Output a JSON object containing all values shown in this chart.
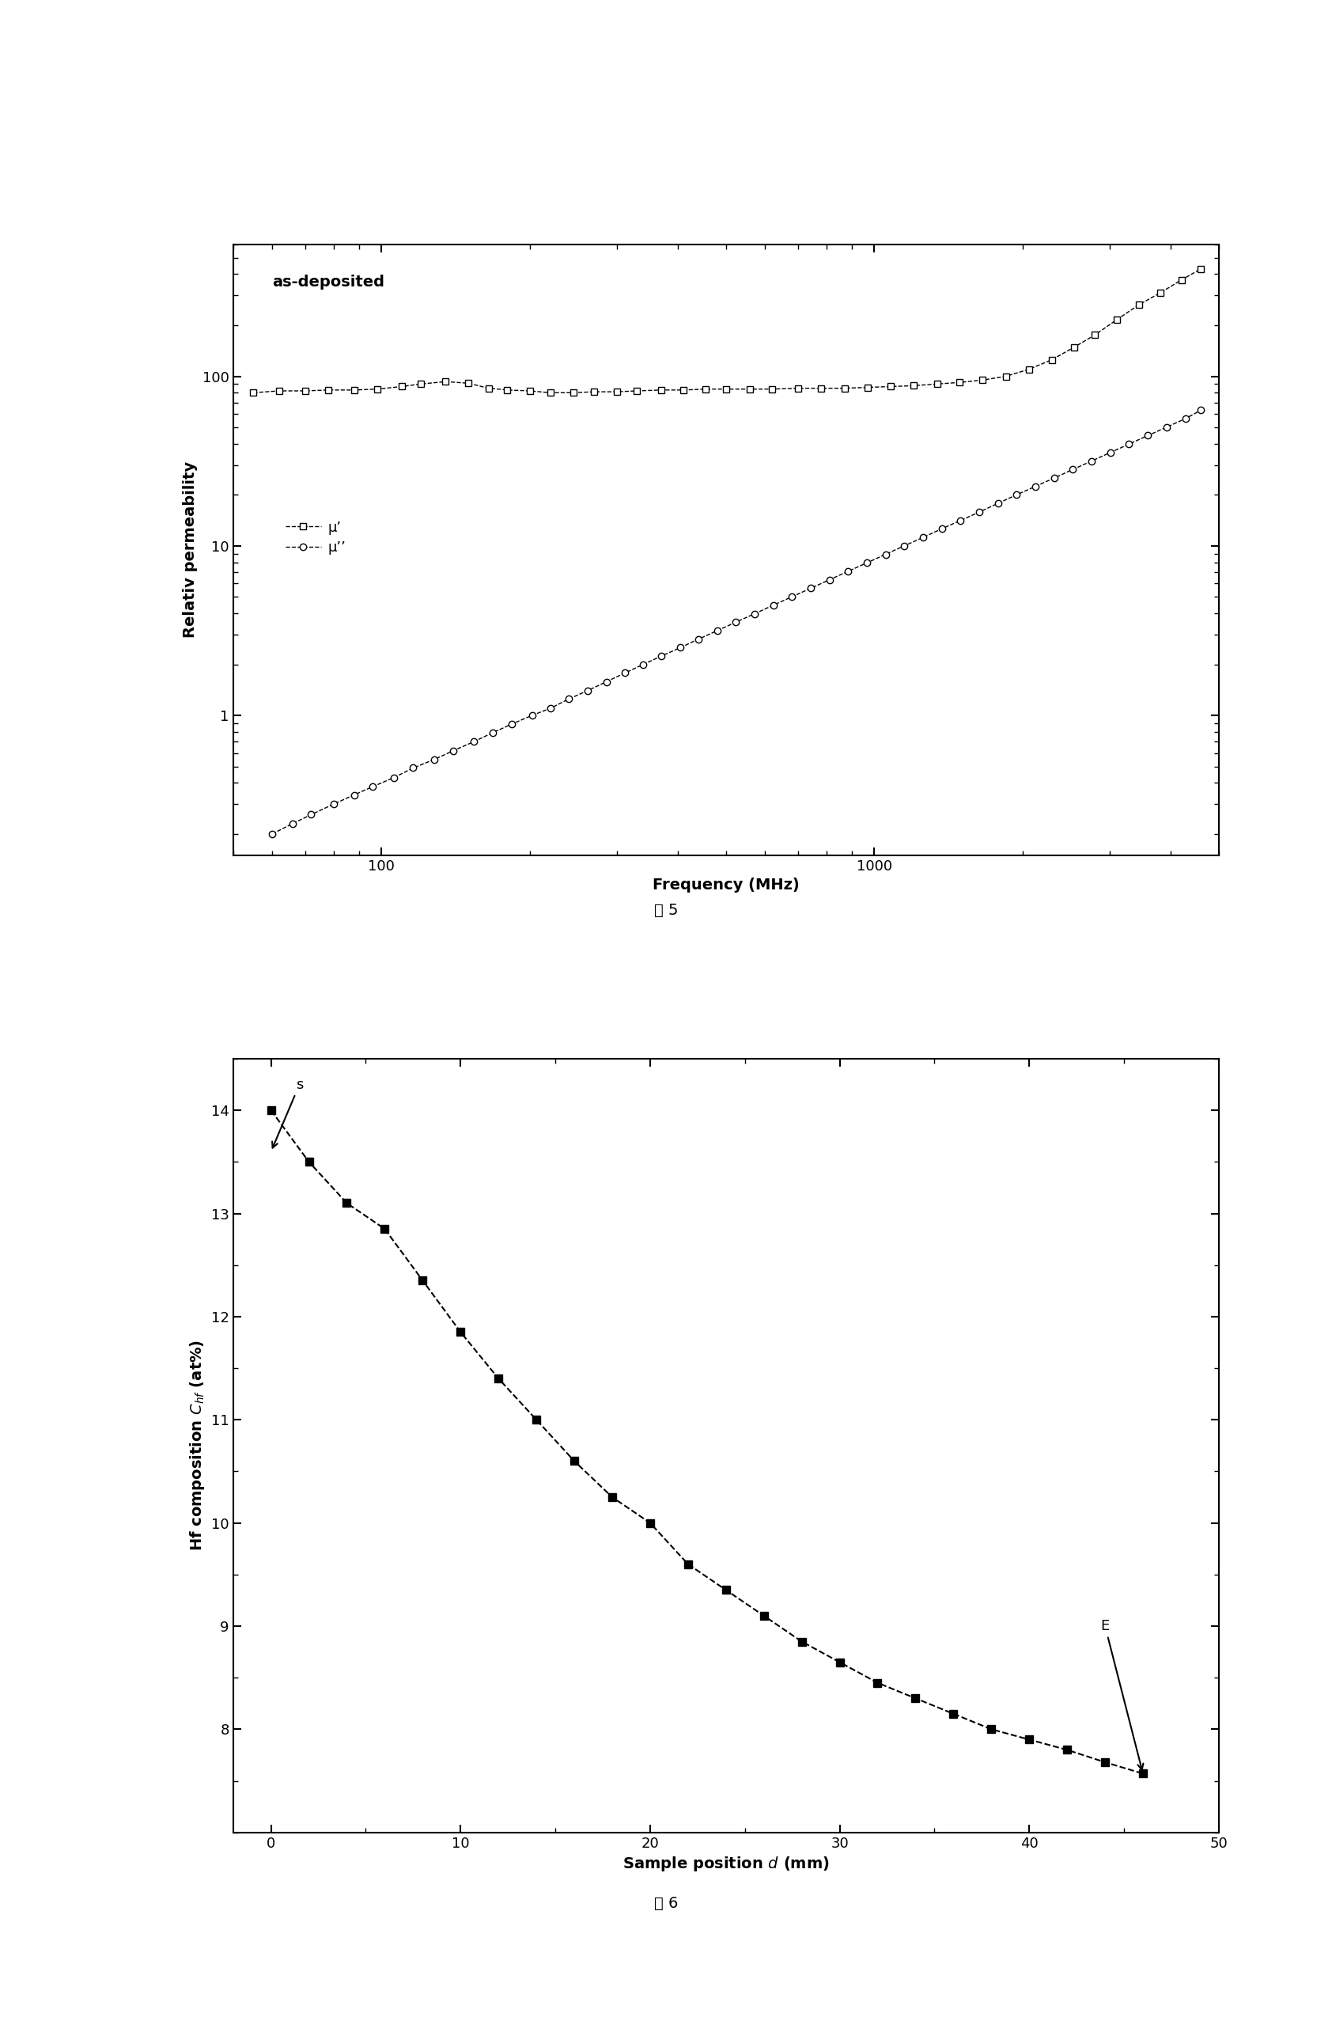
{
  "fig1": {
    "title_text": "as-deposited",
    "ylabel": "Relativ permeability",
    "xlabel": "Frequency (MHz)",
    "mu_prime": {
      "freq": [
        55,
        62,
        70,
        78,
        88,
        98,
        110,
        120,
        135,
        150,
        165,
        180,
        200,
        220,
        245,
        270,
        300,
        330,
        370,
        410,
        455,
        500,
        560,
        620,
        700,
        780,
        870,
        970,
        1080,
        1200,
        1340,
        1490,
        1660,
        1850,
        2060,
        2290,
        2540,
        2800,
        3100,
        3450,
        3800,
        4200,
        4600
      ],
      "vals": [
        80,
        82,
        82,
        83,
        83,
        84,
        87,
        90,
        93,
        91,
        85,
        83,
        82,
        80,
        80,
        81,
        81,
        82,
        83,
        83,
        84,
        84,
        84,
        84,
        85,
        85,
        85,
        86,
        87,
        88,
        90,
        92,
        95,
        100,
        110,
        125,
        148,
        175,
        215,
        265,
        310,
        370,
        430
      ]
    },
    "mu_double_prime": {
      "freq": [
        60,
        66,
        72,
        80,
        88,
        96,
        106,
        116,
        128,
        140,
        154,
        168,
        184,
        202,
        220,
        240,
        262,
        286,
        312,
        340,
        370,
        404,
        440,
        480,
        524,
        572,
        624,
        681,
        743,
        811,
        885,
        966,
        1054,
        1150,
        1255,
        1370,
        1495,
        1632,
        1781,
        1944,
        2122,
        2316,
        2527,
        2758,
        3011,
        3287,
        3588,
        3917,
        4276,
        4600
      ],
      "vals": [
        0.2,
        0.23,
        0.26,
        0.3,
        0.34,
        0.38,
        0.43,
        0.49,
        0.55,
        0.62,
        0.7,
        0.79,
        0.89,
        1.0,
        1.1,
        1.25,
        1.4,
        1.58,
        1.78,
        2.0,
        2.24,
        2.51,
        2.82,
        3.16,
        3.55,
        3.98,
        4.47,
        5.01,
        5.62,
        6.31,
        7.08,
        7.94,
        8.91,
        10.0,
        11.2,
        12.6,
        14.1,
        15.8,
        17.8,
        20.0,
        22.4,
        25.1,
        28.2,
        31.6,
        35.5,
        39.8,
        44.7,
        50.1,
        56.2,
        63.1
      ]
    },
    "legend_mu_prime": "μ’",
    "legend_mu_double_prime": "μ’’"
  },
  "fig2": {
    "ylabel": "Hf composition $C_{hf}$ (at%)",
    "xlabel": "Sample position $d$ (mm)",
    "xlim": [
      -2,
      50
    ],
    "ylim": [
      7.0,
      14.5
    ],
    "x_data": [
      0,
      2,
      4,
      6,
      8,
      10,
      12,
      14,
      16,
      18,
      20,
      22,
      24,
      26,
      28,
      30,
      32,
      34,
      36,
      38,
      40,
      42,
      44,
      46
    ],
    "y_data": [
      14.0,
      13.5,
      13.1,
      12.85,
      12.35,
      11.85,
      11.4,
      11.0,
      10.6,
      10.25,
      10.0,
      9.6,
      9.35,
      9.1,
      8.85,
      8.65,
      8.45,
      8.3,
      8.15,
      8.0,
      7.9,
      7.8,
      7.68,
      7.57
    ],
    "label_S": "s",
    "label_E": "E",
    "fig5_label": "图 5",
    "fig6_label": "图 6"
  },
  "background_color": "#ffffff",
  "line_color": "#000000"
}
